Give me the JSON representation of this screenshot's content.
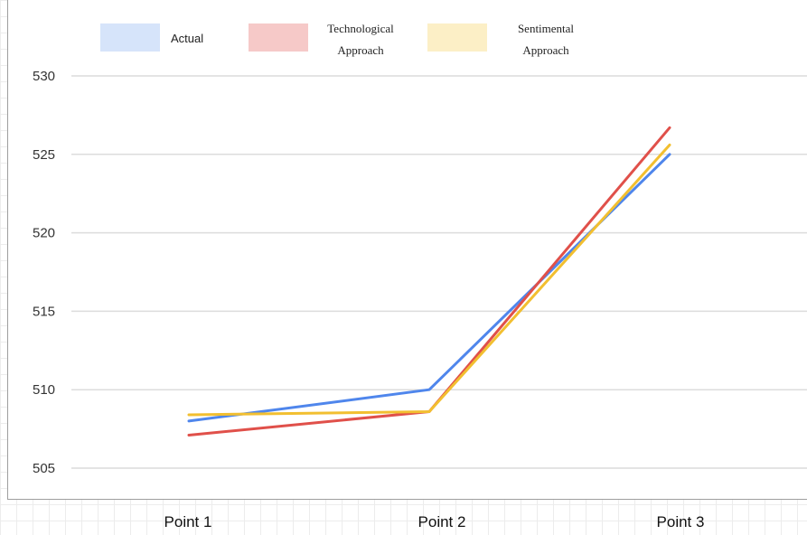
{
  "chart_data": {
    "type": "line",
    "categories": [
      "Point 1",
      "Point 2",
      "Point 3"
    ],
    "series": [
      {
        "name": "Actual",
        "values": [
          508.0,
          510.0,
          525.0
        ],
        "color": "#4f86ec",
        "swatch": "#d6e4fa"
      },
      {
        "name": "Technological Approach",
        "name_lines": [
          "Technological",
          "Approach"
        ],
        "values": [
          507.1,
          508.6,
          526.7
        ],
        "color": "#e0504a",
        "swatch": "#f6c9c8"
      },
      {
        "name": "Sentimental Approach",
        "name_lines": [
          "Sentimental",
          "Approach"
        ],
        "values": [
          508.4,
          508.6,
          525.6
        ],
        "color": "#f2bf30",
        "swatch": "#fcefc6"
      }
    ],
    "yticks": [
      505,
      510,
      515,
      520,
      525,
      530
    ],
    "ylim": [
      503.9,
      531.5
    ],
    "grid": true,
    "legend_position": "top",
    "title": "",
    "xlabel": "",
    "ylabel": ""
  }
}
